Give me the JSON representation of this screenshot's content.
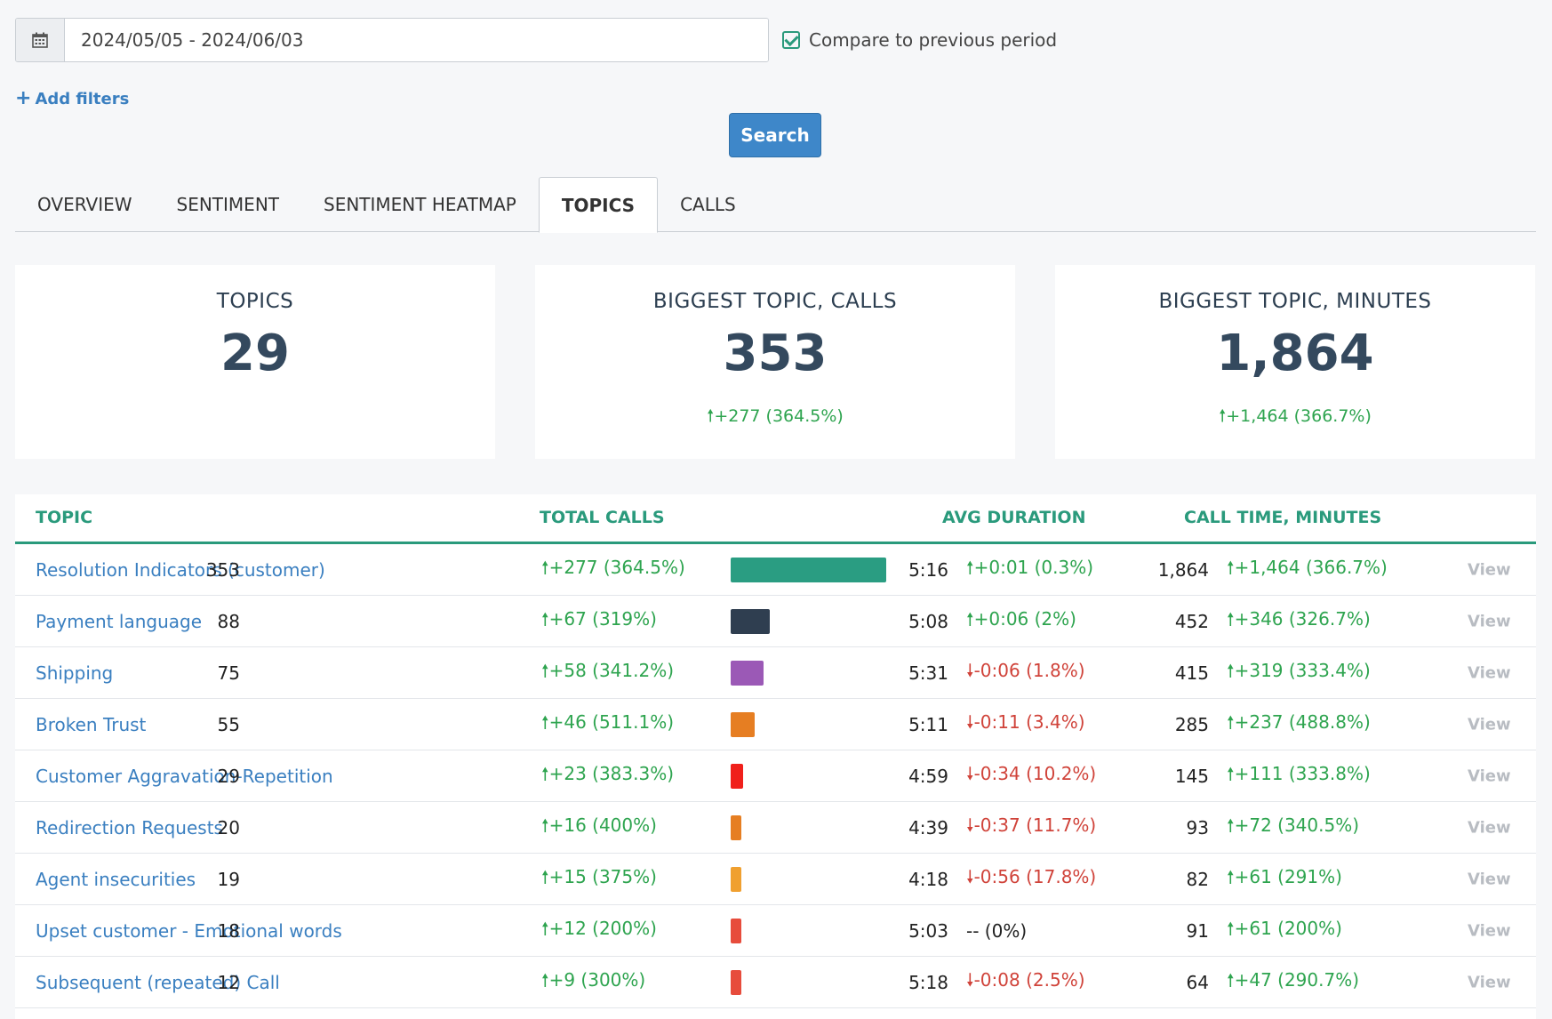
{
  "filters": {
    "date_range": "2024/05/05 - 2024/06/03",
    "compare_label": "Compare to previous period",
    "compare_checked": true,
    "add_filters_label": "Add filters",
    "search_label": "Search"
  },
  "tabs": [
    {
      "label": "OVERVIEW",
      "active": false
    },
    {
      "label": "SENTIMENT",
      "active": false
    },
    {
      "label": "SENTIMENT HEATMAP",
      "active": false
    },
    {
      "label": "TOPICS",
      "active": true
    },
    {
      "label": "CALLS",
      "active": false
    }
  ],
  "cards": [
    {
      "label": "TOPICS",
      "value": "29",
      "delta": ""
    },
    {
      "label": "BIGGEST TOPIC, CALLS",
      "value": "353",
      "delta": "+277 (364.5%)"
    },
    {
      "label": "BIGGEST TOPIC, MINUTES",
      "value": "1,864",
      "delta": "+1,464 (366.7%)"
    }
  ],
  "table": {
    "headers": {
      "topic": "TOPIC",
      "total_calls": "TOTAL CALLS",
      "avg_duration": "AVG DURATION",
      "call_time": "CALL TIME, MINUTES"
    },
    "view_label": "View",
    "rows": [
      {
        "topic": "Resolution Indicators (customer)",
        "calls": "353",
        "calls_delta": "+277 (364.5%)",
        "calls_dir": "up",
        "bar_color": "#2a9d82",
        "duration": "5:16",
        "duration_delta": "+0:01 (0.3%)",
        "duration_dir": "up",
        "minutes": "1,864",
        "minutes_delta": "+1,464 (366.7%)",
        "minutes_dir": "up"
      },
      {
        "topic": "Payment language",
        "calls": "88",
        "calls_delta": "+67 (319%)",
        "calls_dir": "up",
        "bar_color": "#2f3e50",
        "duration": "5:08",
        "duration_delta": "+0:06 (2%)",
        "duration_dir": "up",
        "minutes": "452",
        "minutes_delta": "+346 (326.7%)",
        "minutes_dir": "up"
      },
      {
        "topic": "Shipping",
        "calls": "75",
        "calls_delta": "+58 (341.2%)",
        "calls_dir": "up",
        "bar_color": "#9b59b6",
        "duration": "5:31",
        "duration_delta": "-0:06 (1.8%)",
        "duration_dir": "down",
        "minutes": "415",
        "minutes_delta": "+319 (333.4%)",
        "minutes_dir": "up"
      },
      {
        "topic": "Broken Trust",
        "calls": "55",
        "calls_delta": "+46 (511.1%)",
        "calls_dir": "up",
        "bar_color": "#e67e22",
        "duration": "5:11",
        "duration_delta": "-0:11 (3.4%)",
        "duration_dir": "down",
        "minutes": "285",
        "minutes_delta": "+237 (488.8%)",
        "minutes_dir": "up"
      },
      {
        "topic": "Customer Aggravation-Repetition",
        "calls": "29",
        "calls_delta": "+23 (383.3%)",
        "calls_dir": "up",
        "bar_color": "#f0201b",
        "duration": "4:59",
        "duration_delta": "-0:34 (10.2%)",
        "duration_dir": "down",
        "minutes": "145",
        "minutes_delta": "+111 (333.8%)",
        "minutes_dir": "up"
      },
      {
        "topic": "Redirection Requests",
        "calls": "20",
        "calls_delta": "+16 (400%)",
        "calls_dir": "up",
        "bar_color": "#e67e22",
        "duration": "4:39",
        "duration_delta": "-0:37 (11.7%)",
        "duration_dir": "down",
        "minutes": "93",
        "minutes_delta": "+72 (340.5%)",
        "minutes_dir": "up"
      },
      {
        "topic": "Agent insecurities",
        "calls": "19",
        "calls_delta": "+15 (375%)",
        "calls_dir": "up",
        "bar_color": "#f0a030",
        "duration": "4:18",
        "duration_delta": "-0:56 (17.8%)",
        "duration_dir": "down",
        "minutes": "82",
        "minutes_delta": "+61 (291%)",
        "minutes_dir": "up"
      },
      {
        "topic": "Upset customer - Emotional words",
        "calls": "18",
        "calls_delta": "+12 (200%)",
        "calls_dir": "up",
        "bar_color": "#e74c3c",
        "duration": "5:03",
        "duration_delta": "-- (0%)",
        "duration_dir": "none",
        "minutes": "91",
        "minutes_delta": "+61 (200%)",
        "minutes_dir": "up"
      },
      {
        "topic": "Subsequent (repeated) Call",
        "calls": "12",
        "calls_delta": "+9 (300%)",
        "calls_dir": "up",
        "bar_color": "#e74c3c",
        "duration": "5:18",
        "duration_delta": "-0:08 (2.5%)",
        "duration_dir": "down",
        "minutes": "64",
        "minutes_delta": "+47 (290.7%)",
        "minutes_dir": "up"
      }
    ]
  },
  "icons": {
    "calendar": "calendar-icon",
    "plus": "plus-icon",
    "up": "arrow-up-icon",
    "down": "arrow-down-icon"
  },
  "colors": {
    "accent": "#2a9a7c",
    "link": "#3a7fc0",
    "button": "#3e87c9",
    "up": "#2ea44f",
    "down": "#d0433a"
  }
}
